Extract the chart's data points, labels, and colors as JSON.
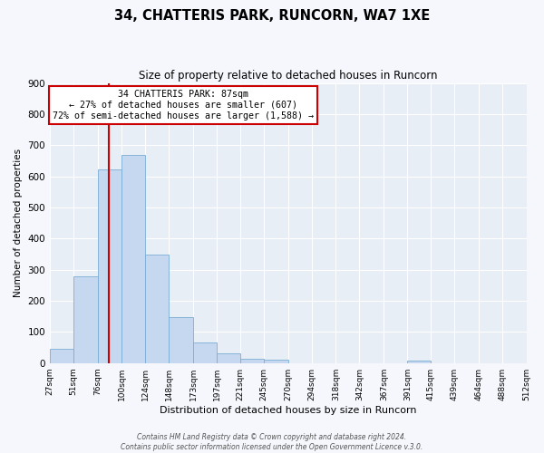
{
  "title": "34, CHATTERIS PARK, RUNCORN, WA7 1XE",
  "subtitle": "Size of property relative to detached houses in Runcorn",
  "xlabel": "Distribution of detached houses by size in Runcorn",
  "ylabel": "Number of detached properties",
  "footer_line1": "Contains HM Land Registry data © Crown copyright and database right 2024.",
  "footer_line2": "Contains public sector information licensed under the Open Government Licence v.3.0.",
  "bin_edges": [
    27,
    51,
    76,
    100,
    124,
    148,
    173,
    197,
    221,
    245,
    270,
    294,
    318,
    342,
    367,
    391,
    415,
    439,
    464,
    488,
    512
  ],
  "bar_heights": [
    45,
    280,
    622,
    670,
    348,
    148,
    65,
    30,
    15,
    10,
    0,
    0,
    0,
    0,
    0,
    8,
    0,
    0,
    0,
    0
  ],
  "bar_color": "#c5d8f0",
  "bar_edgecolor": "#7aadd4",
  "property_line_x": 87,
  "property_line_color": "#cc0000",
  "annotation_title": "34 CHATTERIS PARK: 87sqm",
  "annotation_line1": "← 27% of detached houses are smaller (607)",
  "annotation_line2": "72% of semi-detached houses are larger (1,588) →",
  "annotation_box_color": "#cc0000",
  "ylim": [
    0,
    900
  ],
  "yticks": [
    0,
    100,
    200,
    300,
    400,
    500,
    600,
    700,
    800,
    900
  ],
  "background_color": "#e8eef6",
  "grid_color": "#ffffff",
  "tick_labels": [
    "27sqm",
    "51sqm",
    "76sqm",
    "100sqm",
    "124sqm",
    "148sqm",
    "173sqm",
    "197sqm",
    "221sqm",
    "245sqm",
    "270sqm",
    "294sqm",
    "318sqm",
    "342sqm",
    "367sqm",
    "391sqm",
    "415sqm",
    "439sqm",
    "464sqm",
    "488sqm",
    "512sqm"
  ],
  "fig_bg_color": "#f5f7fc"
}
